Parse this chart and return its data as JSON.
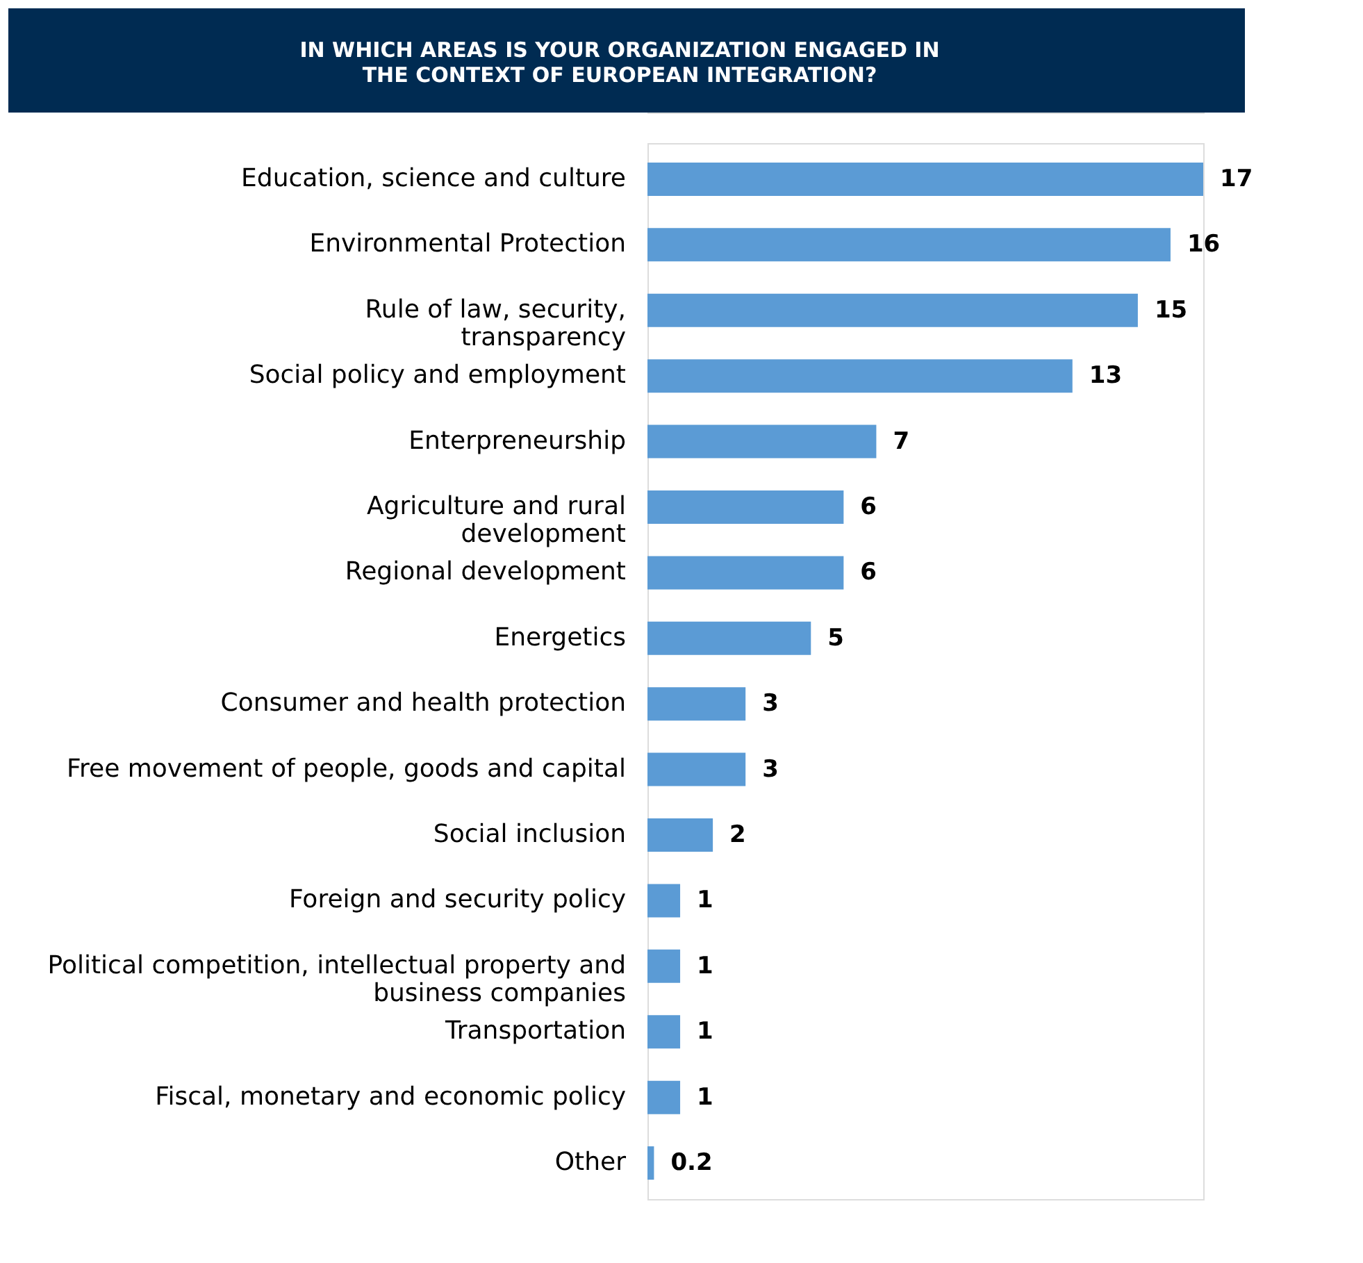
{
  "chart_data": {
    "type": "bar",
    "orientation": "horizontal",
    "title": "IN WHICH AREAS IS YOUR ORGANIZATION ENGAGED IN\nTHE CONTEXT OF EUROPEAN INTEGRATION?",
    "categories": [
      "Education, science and culture",
      "Environmental Protection",
      "Rule of law, security,\ntransparency",
      "Social policy and employment",
      "Enterpreneurship",
      "Agriculture  and rural\ndevelopment",
      "Regional development",
      "Energetics",
      "Consumer and health protection",
      "Free movement of people, goods and capital",
      "Social inclusion",
      "Foreign and security policy",
      "Political competition, intellectual property and\nbusiness companies",
      "Transportation",
      "Fiscal, monetary and economic policy",
      "Other"
    ],
    "values": [
      17,
      16,
      15,
      13,
      7,
      6,
      6,
      5,
      3,
      3,
      2,
      1,
      1,
      1,
      1,
      0.2
    ],
    "color": "#5b9bd5",
    "data_labels": true
  }
}
